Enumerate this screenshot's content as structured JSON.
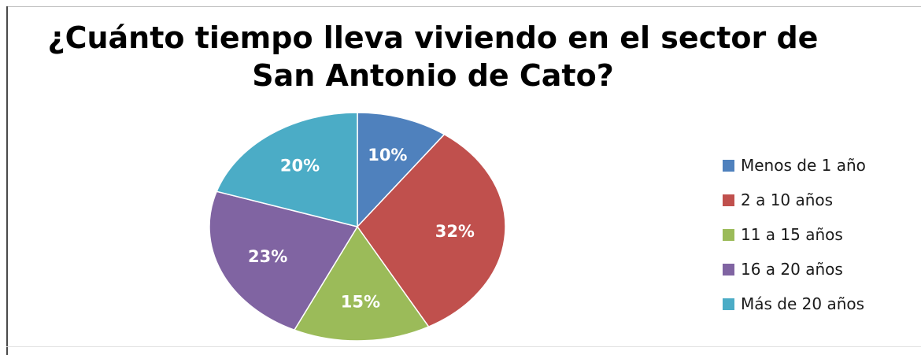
{
  "chart_data": {
    "type": "pie",
    "title_lines": [
      "¿Cuánto tiempo lleva viviendo en el sector de",
      "San Antonio de Cato?"
    ],
    "categories": [
      "Menos de 1 año",
      "2 a 10 años",
      "11 a 15 años",
      "16 a 20 años",
      "Más de 20 años"
    ],
    "values": [
      10,
      32,
      15,
      23,
      20
    ],
    "data_labels": [
      "10%",
      "32%",
      "15%",
      "23%",
      "20%"
    ],
    "colors": [
      "#4F81BD",
      "#C0504D",
      "#9BBB59",
      "#8064A2",
      "#4BACC6"
    ],
    "legend_position": "right",
    "start_angle": "top",
    "direction": "clockwise"
  }
}
